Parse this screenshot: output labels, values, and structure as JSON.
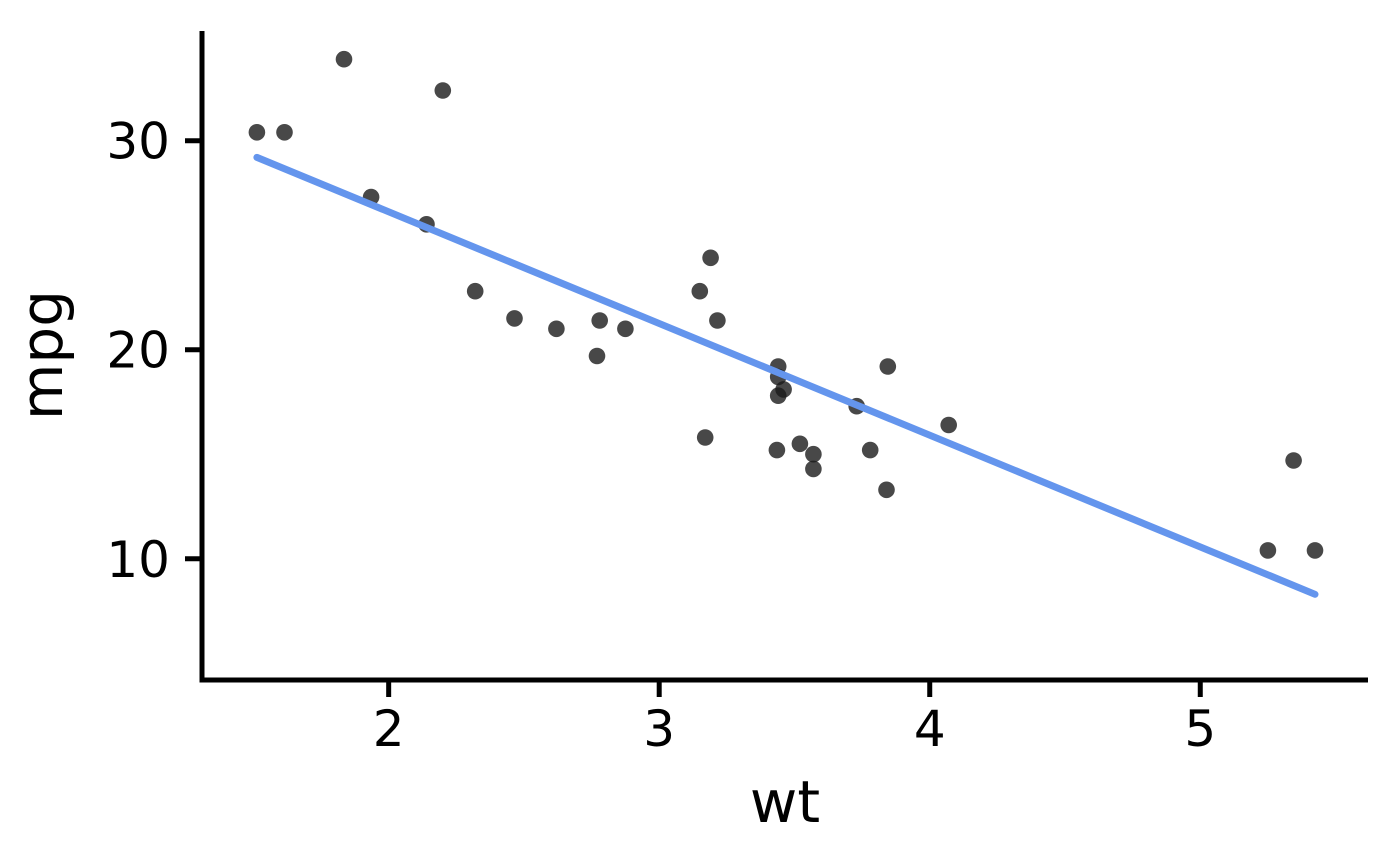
{
  "chart_data": {
    "type": "scatter",
    "title": "",
    "xlabel": "wt",
    "ylabel": "mpg",
    "x_ticks": [
      2,
      3,
      4,
      5
    ],
    "y_ticks": [
      10,
      20,
      30
    ],
    "xlim": [
      1.31,
      5.62
    ],
    "ylim": [
      4.2,
      35.2
    ],
    "grid": false,
    "legend": false,
    "colors": {
      "point": "#1a1a1a",
      "point_opacity": 0.8,
      "trend_line": "#6495ED",
      "axis": "#000000",
      "text": "#000000"
    },
    "series": [
      {
        "name": "points",
        "x_field": "wt",
        "y_field": "mpg",
        "points": [
          [
            2.62,
            21.0
          ],
          [
            2.875,
            21.0
          ],
          [
            2.32,
            22.8
          ],
          [
            3.215,
            21.4
          ],
          [
            3.44,
            18.7
          ],
          [
            3.46,
            18.1
          ],
          [
            3.57,
            14.3
          ],
          [
            3.19,
            24.4
          ],
          [
            3.15,
            22.8
          ],
          [
            3.44,
            19.2
          ],
          [
            3.44,
            17.8
          ],
          [
            4.07,
            16.4
          ],
          [
            3.73,
            17.3
          ],
          [
            3.78,
            15.2
          ],
          [
            5.25,
            10.4
          ],
          [
            5.424,
            10.4
          ],
          [
            5.345,
            14.7
          ],
          [
            2.2,
            32.4
          ],
          [
            1.615,
            30.4
          ],
          [
            1.835,
            33.9
          ],
          [
            2.465,
            21.5
          ],
          [
            3.52,
            15.5
          ],
          [
            3.435,
            15.2
          ],
          [
            3.84,
            13.3
          ],
          [
            3.845,
            19.2
          ],
          [
            1.935,
            27.3
          ],
          [
            2.14,
            26.0
          ],
          [
            1.513,
            30.4
          ],
          [
            3.17,
            15.8
          ],
          [
            2.77,
            19.7
          ],
          [
            3.57,
            15.0
          ],
          [
            2.78,
            21.4
          ]
        ]
      }
    ],
    "trend_line": {
      "type": "linear_fit",
      "x_start": 1.513,
      "y_start": 29.2,
      "x_end": 5.424,
      "y_end": 8.3
    }
  }
}
